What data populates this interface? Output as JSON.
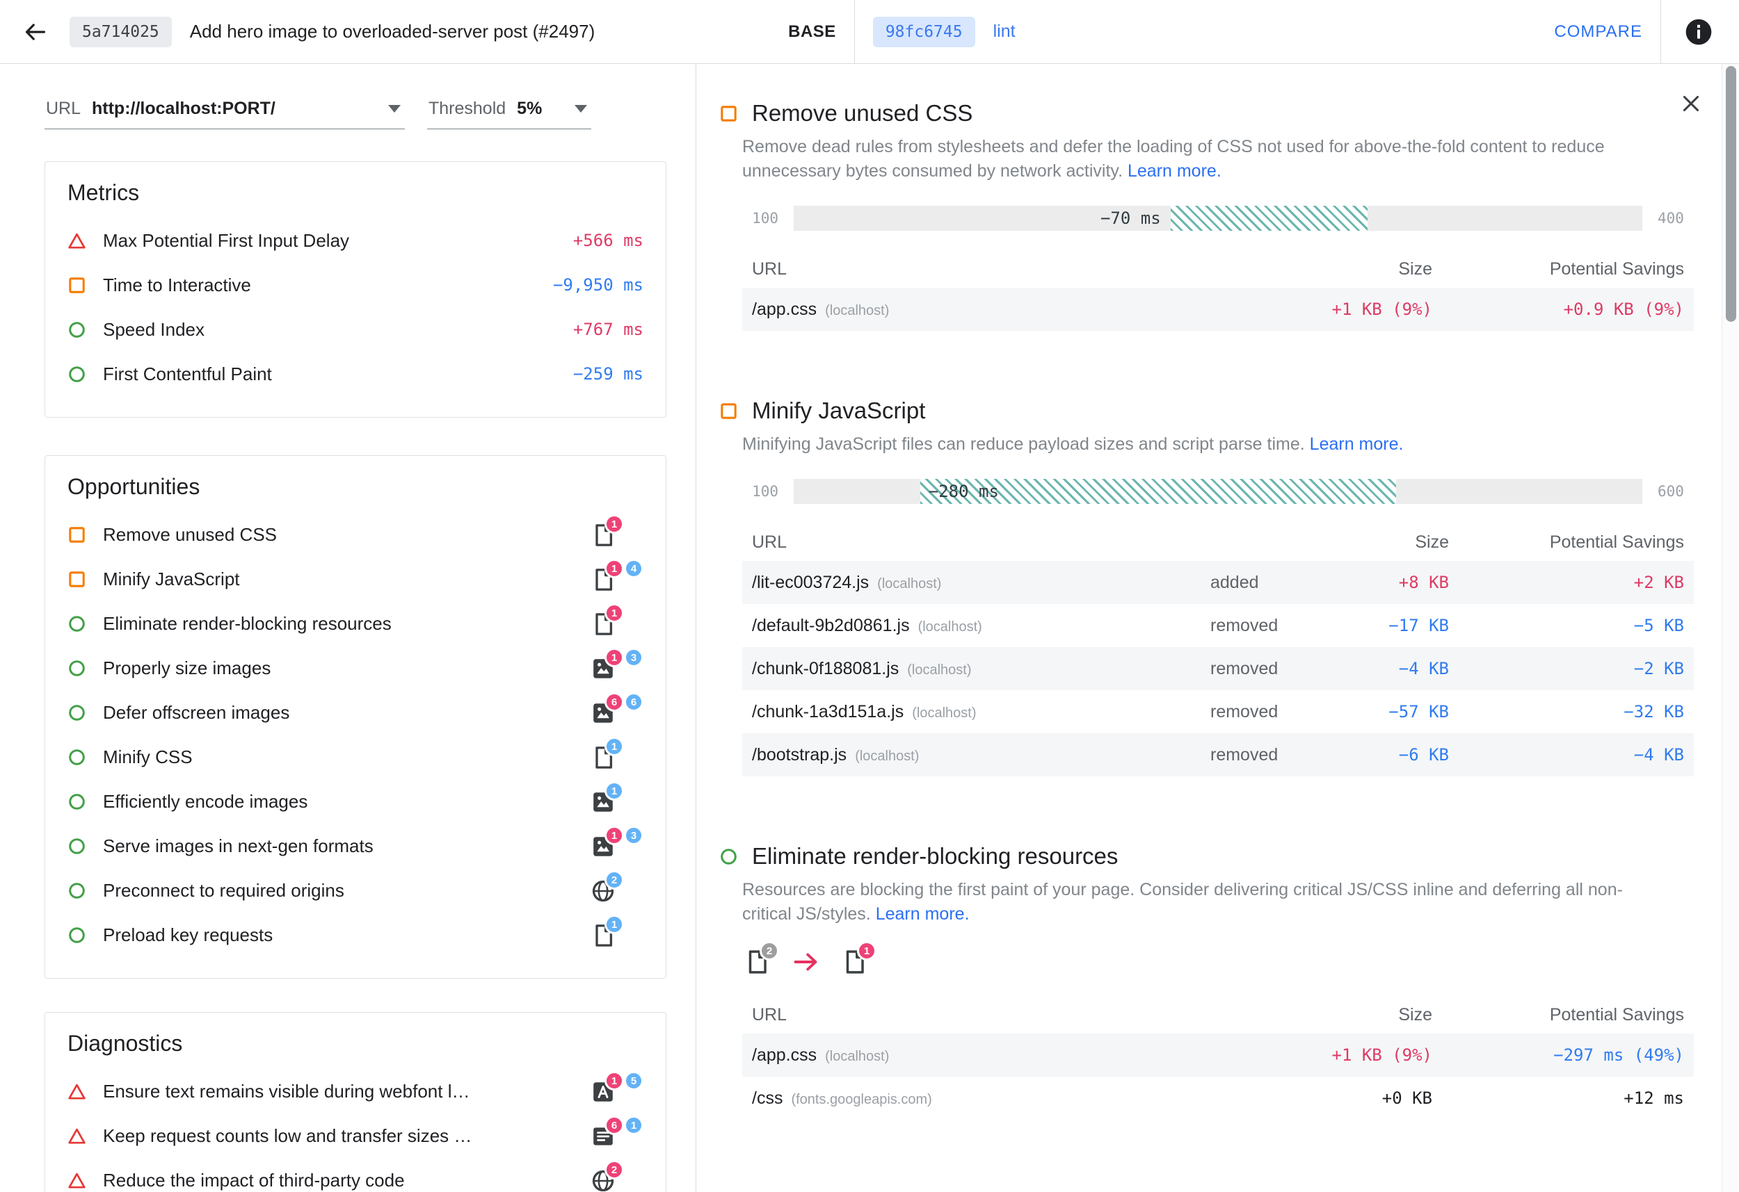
{
  "colors": {
    "accent_blue": "#2b6ff2",
    "improvement": "#2f7cf0",
    "regression": "#dd3b66",
    "badge_pink": "#ee4277",
    "badge_blue": "#63b2f6",
    "badge_gray": "#9e9e9e",
    "pass_green": "#43a047",
    "average_orange": "#f57c00",
    "fail_red": "#e53935",
    "hatch_teal": "#00897b"
  },
  "header": {
    "base_hash": "5a714025",
    "title": "Add hero image to overloaded-server post (#2497)",
    "base_label": "BASE",
    "compare_hash": "98fc6745",
    "compare_branch": "lint",
    "compare_action": "COMPARE"
  },
  "controls": {
    "url_label": "URL",
    "url_value": "http://localhost:PORT/",
    "threshold_label": "Threshold",
    "threshold_value": "5%"
  },
  "metrics": {
    "title": "Metrics",
    "items": [
      {
        "label": "Max Potential First Input Delay",
        "value": "+566 ms"
      },
      {
        "label": "Time to Interactive",
        "value": "−9,950 ms"
      },
      {
        "label": "Speed Index",
        "value": "+767 ms"
      },
      {
        "label": "First Contentful Paint",
        "value": "−259 ms"
      }
    ]
  },
  "opportunities": {
    "title": "Opportunities",
    "items": [
      {
        "label": "Remove unused CSS",
        "b1": "1"
      },
      {
        "label": "Minify JavaScript",
        "b1": "1",
        "b2": "4"
      },
      {
        "label": "Eliminate render-blocking resources",
        "b1": "1"
      },
      {
        "label": "Properly size images",
        "b1": "1",
        "b2": "3"
      },
      {
        "label": "Defer offscreen images",
        "b1": "6",
        "b2": "6"
      },
      {
        "label": "Minify CSS",
        "b1": "1"
      },
      {
        "label": "Efficiently encode images",
        "b1": "1"
      },
      {
        "label": "Serve images in next-gen formats",
        "b1": "1",
        "b2": "3"
      },
      {
        "label": "Preconnect to required origins",
        "b1": "2"
      },
      {
        "label": "Preload key requests",
        "b1": "1"
      }
    ]
  },
  "diagnostics": {
    "title": "Diagnostics",
    "items": [
      {
        "label": "Ensure text remains visible during webfont l…",
        "b1": "1",
        "b2": "5"
      },
      {
        "label": "Keep request counts low and transfer sizes …",
        "b1": "6",
        "b2": "1"
      },
      {
        "label": "Reduce the impact of third-party code",
        "b1": "2"
      }
    ]
  },
  "details": {
    "sections": [
      {
        "title": "Remove unused CSS",
        "description": "Remove dead rules from stylesheets and defer the loading of CSS not used for above-the-fold content to reduce unnecessary bytes consumed by network activity.",
        "learn_more": "Learn more.",
        "gauge": {
          "min": "100",
          "max": "400",
          "label": "−70 ms",
          "hatch_left": 44.4,
          "hatch_width": 23.2,
          "align": "right"
        },
        "cols": {
          "url": "URL",
          "size": "Size",
          "savings": "Potential Savings"
        },
        "rows": [
          {
            "url": "/app.css",
            "host": "(localhost)",
            "size": "+1 KB (9%)",
            "savings": "+0.9 KB (9%)"
          }
        ]
      },
      {
        "title": "Minify JavaScript",
        "description": "Minifying JavaScript files can reduce payload sizes and script parse time.",
        "learn_more": "Learn more.",
        "gauge": {
          "min": "100",
          "max": "600",
          "label": "−280 ms",
          "hatch_left": 14.9,
          "hatch_width": 56.1,
          "align": "left"
        },
        "cols": {
          "url": "URL",
          "size": "Size",
          "savings": "Potential Savings"
        },
        "rows": [
          {
            "url": "/lit-ec003724.js",
            "host": "(localhost)",
            "change": "added",
            "size": "+8 KB",
            "savings": "+2 KB"
          },
          {
            "url": "/default-9b2d0861.js",
            "host": "(localhost)",
            "change": "removed",
            "size": "−17 KB",
            "savings": "−5 KB"
          },
          {
            "url": "/chunk-0f188081.js",
            "host": "(localhost)",
            "change": "removed",
            "size": "−4 KB",
            "savings": "−2 KB"
          },
          {
            "url": "/chunk-1a3d151a.js",
            "host": "(localhost)",
            "change": "removed",
            "size": "−57 KB",
            "savings": "−32 KB"
          },
          {
            "url": "/bootstrap.js",
            "host": "(localhost)",
            "change": "removed",
            "size": "−6 KB",
            "savings": "−4 KB"
          }
        ]
      },
      {
        "title": "Eliminate render-blocking resources",
        "description": "Resources are blocking the first paint of your page. Consider delivering critical JS/CSS inline and deferring all non-critical JS/styles.",
        "learn_more": "Learn more.",
        "flow": {
          "before": "2",
          "after": "1"
        },
        "cols": {
          "url": "URL",
          "size": "Size",
          "savings": "Potential Savings"
        },
        "rows": [
          {
            "url": "/app.css",
            "host": "(localhost)",
            "size": "+1 KB (9%)",
            "savings": "−297 ms (49%)"
          },
          {
            "url": "/css",
            "host": "(fonts.googleapis.com)",
            "size": "+0 KB",
            "savings": "+12 ms"
          }
        ]
      }
    ]
  }
}
